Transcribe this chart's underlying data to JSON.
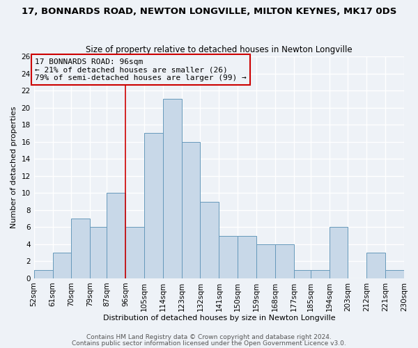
{
  "title": "17, BONNARDS ROAD, NEWTON LONGVILLE, MILTON KEYNES, MK17 0DS",
  "subtitle": "Size of property relative to detached houses in Newton Longville",
  "xlabel": "Distribution of detached houses by size in Newton Longville",
  "ylabel": "Number of detached properties",
  "footer_line1": "Contains HM Land Registry data © Crown copyright and database right 2024.",
  "footer_line2": "Contains public sector information licensed under the Open Government Licence v3.0.",
  "bin_labels": [
    "52sqm",
    "61sqm",
    "70sqm",
    "79sqm",
    "87sqm",
    "96sqm",
    "105sqm",
    "114sqm",
    "123sqm",
    "132sqm",
    "141sqm",
    "150sqm",
    "159sqm",
    "168sqm",
    "177sqm",
    "185sqm",
    "194sqm",
    "203sqm",
    "212sqm",
    "221sqm",
    "230sqm"
  ],
  "bin_edges": [
    52,
    61,
    70,
    79,
    87,
    96,
    105,
    114,
    123,
    132,
    141,
    150,
    159,
    168,
    177,
    185,
    194,
    203,
    212,
    221,
    230
  ],
  "bar_heights": [
    1,
    3,
    7,
    6,
    10,
    6,
    17,
    21,
    16,
    9,
    5,
    5,
    4,
    4,
    1,
    1,
    6,
    0,
    3,
    1
  ],
  "bar_color": "#c8d8e8",
  "bar_edge_color": "#6699bb",
  "reference_line_x": 96,
  "reference_line_color": "#cc0000",
  "annotation_line1": "17 BONNARDS ROAD: 96sqm",
  "annotation_line2": "← 21% of detached houses are smaller (26)",
  "annotation_line3": "79% of semi-detached houses are larger (99) →",
  "box_edge_color": "#cc0000",
  "ylim": [
    0,
    26
  ],
  "yticks": [
    0,
    2,
    4,
    6,
    8,
    10,
    12,
    14,
    16,
    18,
    20,
    22,
    24,
    26
  ],
  "bg_color": "#eef2f7",
  "grid_color": "#ffffff",
  "title_fontsize": 9.5,
  "subtitle_fontsize": 8.5,
  "axis_label_fontsize": 8,
  "tick_fontsize": 7.5,
  "annotation_fontsize": 8,
  "footer_fontsize": 6.5
}
